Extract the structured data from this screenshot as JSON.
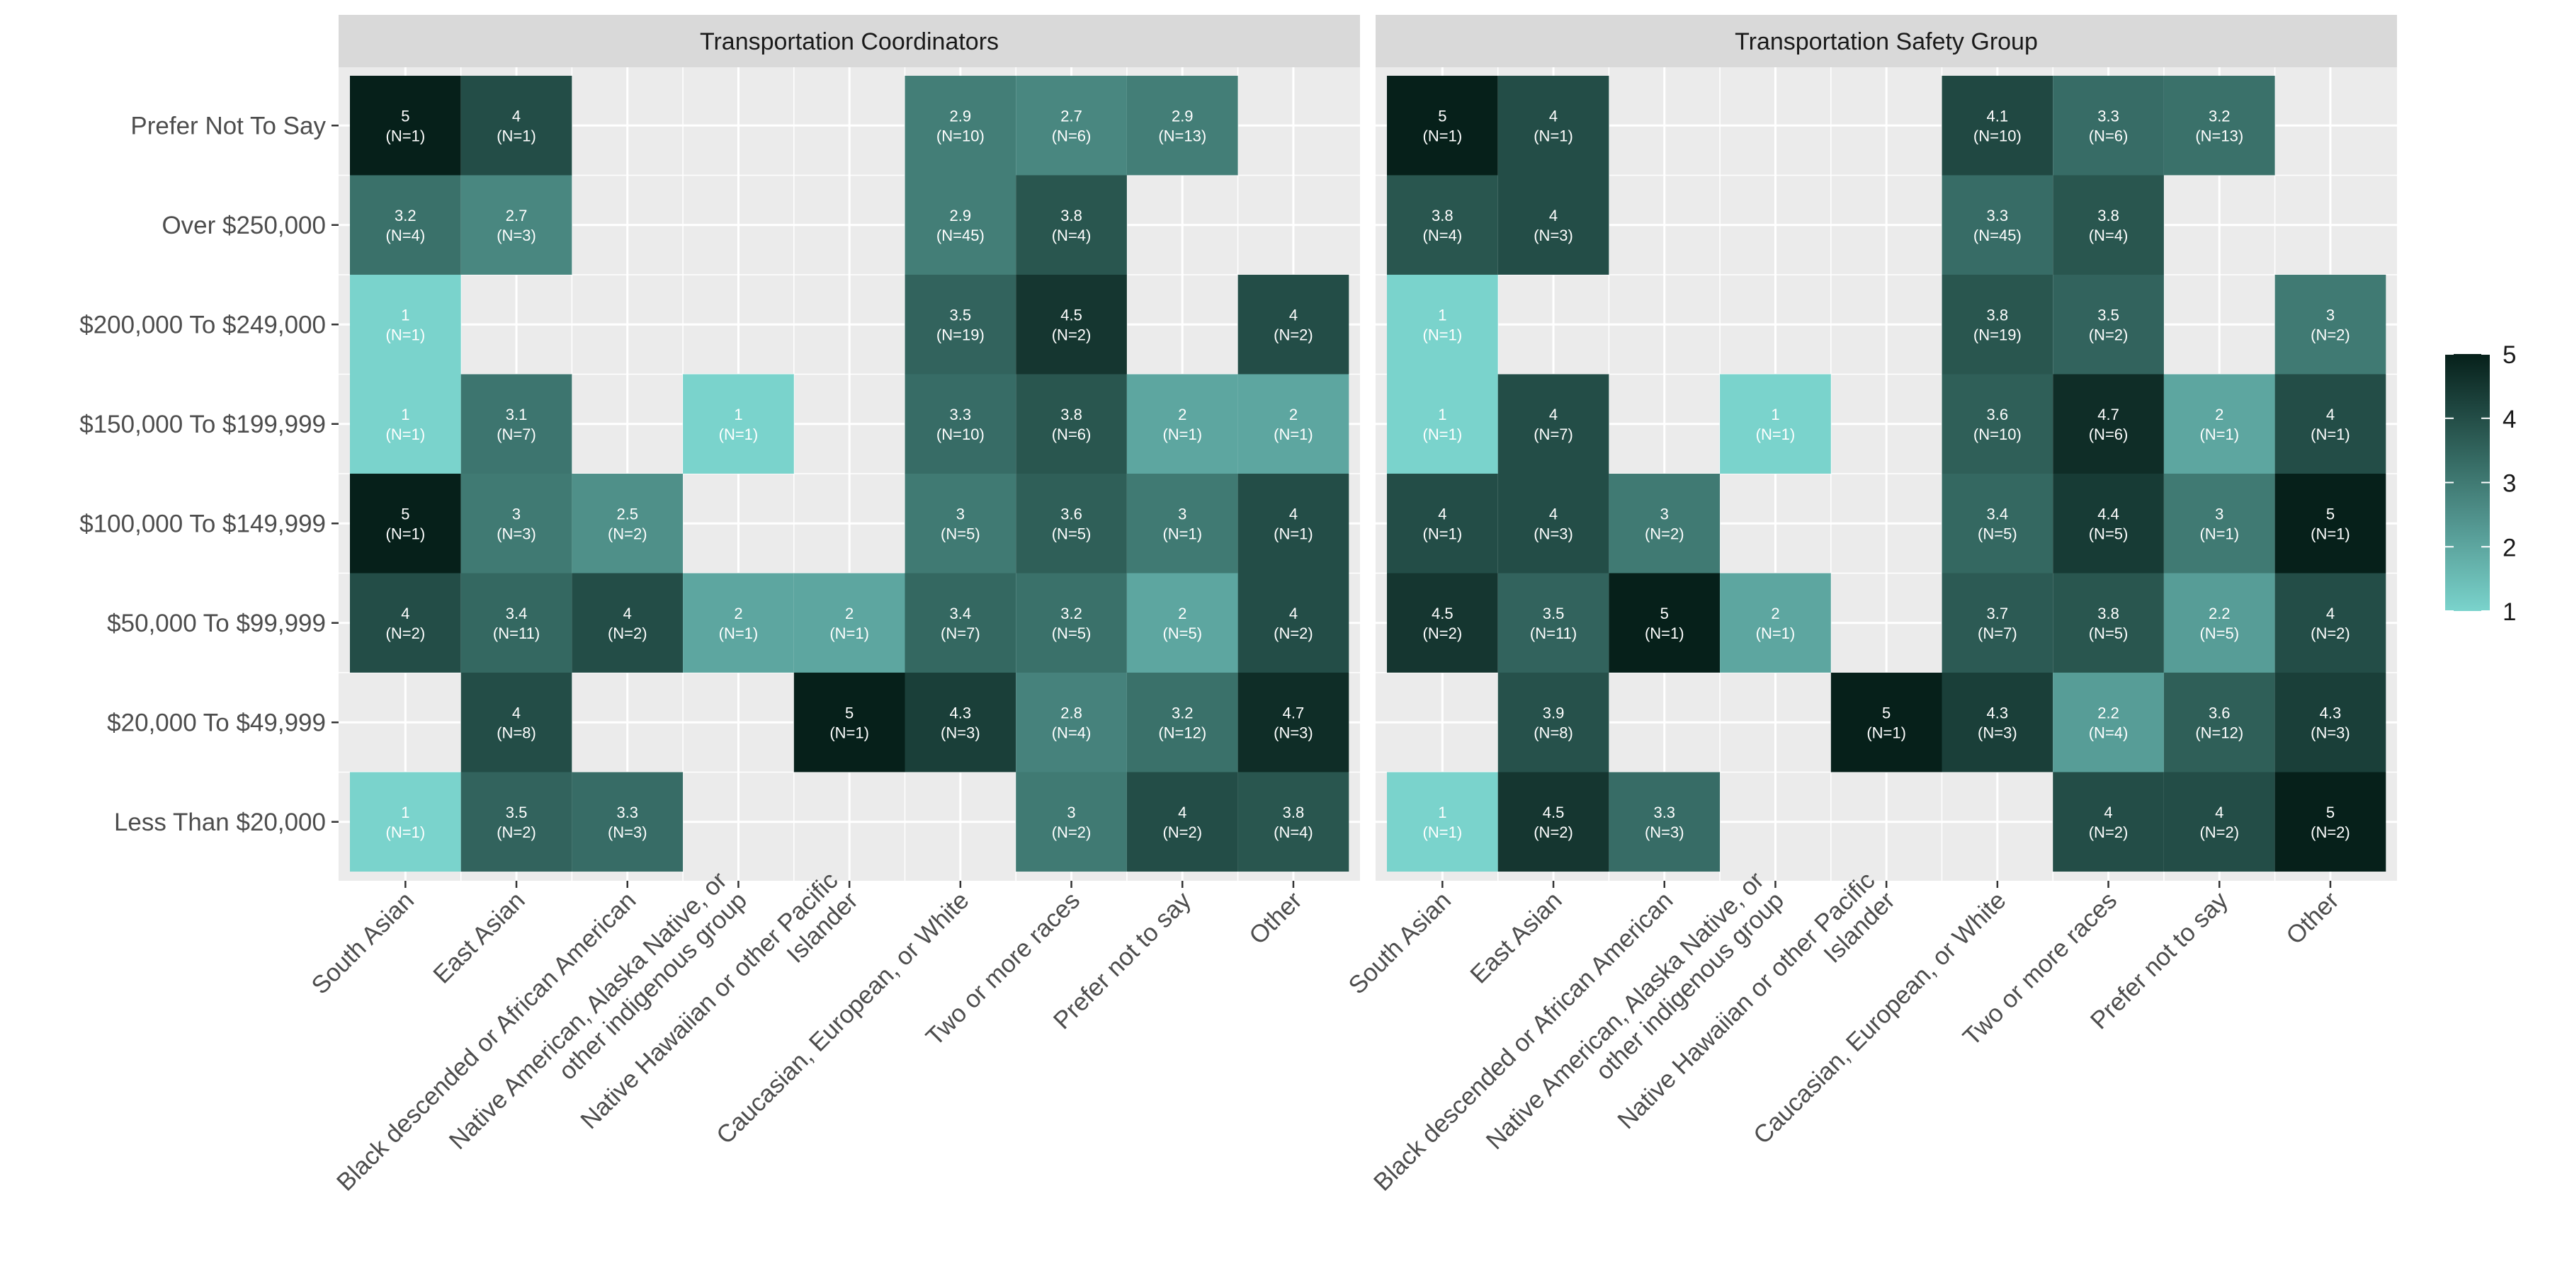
{
  "chart_data": {
    "type": "heatmap",
    "x_categories": [
      "South Asian",
      "East Asian",
      "Black descended or African American",
      "Native American, Alaska Native, or\nother indigenous group",
      "Native Hawaiian or other Pacific\nIslander",
      "Caucasian, European, or White",
      "Two or more races",
      "Prefer not to say",
      "Other"
    ],
    "y_categories": [
      "Prefer Not To Say",
      "Over $250,000",
      "$200,000 To $249,000",
      "$150,000 To $199,999",
      "$100,000 To $149,999",
      "$50,000 To $99,999",
      "$20,000 To $49,999",
      "Less Than $20,000"
    ],
    "color_scale": {
      "low": "#7ad3cc",
      "high": "#06201a",
      "min": 1,
      "max": 5,
      "missing": "#ebebeb"
    },
    "legend": {
      "ticks": [
        1,
        2,
        3,
        4,
        5
      ],
      "placement": "right"
    },
    "panels": [
      {
        "title": "Transportation Coordinators",
        "cells": [
          {
            "x": 0,
            "y": 0,
            "value": "5",
            "n": "(N=1)"
          },
          {
            "x": 1,
            "y": 0,
            "value": "4",
            "n": "(N=1)"
          },
          {
            "x": 5,
            "y": 0,
            "value": "2.9",
            "n": "(N=10)"
          },
          {
            "x": 6,
            "y": 0,
            "value": "2.7",
            "n": "(N=6)"
          },
          {
            "x": 7,
            "y": 0,
            "value": "2.9",
            "n": "(N=13)"
          },
          {
            "x": 0,
            "y": 1,
            "value": "3.2",
            "n": "(N=4)"
          },
          {
            "x": 1,
            "y": 1,
            "value": "2.7",
            "n": "(N=3)"
          },
          {
            "x": 5,
            "y": 1,
            "value": "2.9",
            "n": "(N=45)"
          },
          {
            "x": 6,
            "y": 1,
            "value": "3.8",
            "n": "(N=4)"
          },
          {
            "x": 0,
            "y": 2,
            "value": "1",
            "n": "(N=1)"
          },
          {
            "x": 5,
            "y": 2,
            "value": "3.5",
            "n": "(N=19)"
          },
          {
            "x": 6,
            "y": 2,
            "value": "4.5",
            "n": "(N=2)"
          },
          {
            "x": 8,
            "y": 2,
            "value": "4",
            "n": "(N=2)"
          },
          {
            "x": 0,
            "y": 3,
            "value": "1",
            "n": "(N=1)"
          },
          {
            "x": 1,
            "y": 3,
            "value": "3.1",
            "n": "(N=7)"
          },
          {
            "x": 3,
            "y": 3,
            "value": "1",
            "n": "(N=1)"
          },
          {
            "x": 5,
            "y": 3,
            "value": "3.3",
            "n": "(N=10)"
          },
          {
            "x": 6,
            "y": 3,
            "value": "3.8",
            "n": "(N=6)"
          },
          {
            "x": 7,
            "y": 3,
            "value": "2",
            "n": "(N=1)"
          },
          {
            "x": 8,
            "y": 3,
            "value": "2",
            "n": "(N=1)"
          },
          {
            "x": 0,
            "y": 4,
            "value": "5",
            "n": "(N=1)"
          },
          {
            "x": 1,
            "y": 4,
            "value": "3",
            "n": "(N=3)"
          },
          {
            "x": 2,
            "y": 4,
            "value": "2.5",
            "n": "(N=2)"
          },
          {
            "x": 5,
            "y": 4,
            "value": "3",
            "n": "(N=5)"
          },
          {
            "x": 6,
            "y": 4,
            "value": "3.6",
            "n": "(N=5)"
          },
          {
            "x": 7,
            "y": 4,
            "value": "3",
            "n": "(N=1)"
          },
          {
            "x": 8,
            "y": 4,
            "value": "4",
            "n": "(N=1)"
          },
          {
            "x": 0,
            "y": 5,
            "value": "4",
            "n": "(N=2)"
          },
          {
            "x": 1,
            "y": 5,
            "value": "3.4",
            "n": "(N=11)"
          },
          {
            "x": 2,
            "y": 5,
            "value": "4",
            "n": "(N=2)"
          },
          {
            "x": 3,
            "y": 5,
            "value": "2",
            "n": "(N=1)"
          },
          {
            "x": 4,
            "y": 5,
            "value": "2",
            "n": "(N=1)"
          },
          {
            "x": 5,
            "y": 5,
            "value": "3.4",
            "n": "(N=7)"
          },
          {
            "x": 6,
            "y": 5,
            "value": "3.2",
            "n": "(N=5)"
          },
          {
            "x": 7,
            "y": 5,
            "value": "2",
            "n": "(N=5)"
          },
          {
            "x": 8,
            "y": 5,
            "value": "4",
            "n": "(N=2)"
          },
          {
            "x": 1,
            "y": 6,
            "value": "4",
            "n": "(N=8)"
          },
          {
            "x": 4,
            "y": 6,
            "value": "5",
            "n": "(N=1)"
          },
          {
            "x": 5,
            "y": 6,
            "value": "4.3",
            "n": "(N=3)"
          },
          {
            "x": 6,
            "y": 6,
            "value": "2.8",
            "n": "(N=4)"
          },
          {
            "x": 7,
            "y": 6,
            "value": "3.2",
            "n": "(N=12)"
          },
          {
            "x": 8,
            "y": 6,
            "value": "4.7",
            "n": "(N=3)"
          },
          {
            "x": 0,
            "y": 7,
            "value": "1",
            "n": "(N=1)"
          },
          {
            "x": 1,
            "y": 7,
            "value": "3.5",
            "n": "(N=2)"
          },
          {
            "x": 2,
            "y": 7,
            "value": "3.3",
            "n": "(N=3)"
          },
          {
            "x": 6,
            "y": 7,
            "value": "3",
            "n": "(N=2)"
          },
          {
            "x": 7,
            "y": 7,
            "value": "4",
            "n": "(N=2)"
          },
          {
            "x": 8,
            "y": 7,
            "value": "3.8",
            "n": "(N=4)"
          }
        ]
      },
      {
        "title": "Transportation Safety Group",
        "cells": [
          {
            "x": 0,
            "y": 0,
            "value": "5",
            "n": "(N=1)"
          },
          {
            "x": 1,
            "y": 0,
            "value": "4",
            "n": "(N=1)"
          },
          {
            "x": 5,
            "y": 0,
            "value": "4.1",
            "n": "(N=10)"
          },
          {
            "x": 6,
            "y": 0,
            "value": "3.3",
            "n": "(N=6)"
          },
          {
            "x": 7,
            "y": 0,
            "value": "3.2",
            "n": "(N=13)"
          },
          {
            "x": 0,
            "y": 1,
            "value": "3.8",
            "n": "(N=4)"
          },
          {
            "x": 1,
            "y": 1,
            "value": "4",
            "n": "(N=3)"
          },
          {
            "x": 5,
            "y": 1,
            "value": "3.3",
            "n": "(N=45)"
          },
          {
            "x": 6,
            "y": 1,
            "value": "3.8",
            "n": "(N=4)"
          },
          {
            "x": 0,
            "y": 2,
            "value": "1",
            "n": "(N=1)"
          },
          {
            "x": 5,
            "y": 2,
            "value": "3.8",
            "n": "(N=19)"
          },
          {
            "x": 6,
            "y": 2,
            "value": "3.5",
            "n": "(N=2)"
          },
          {
            "x": 8,
            "y": 2,
            "value": "3",
            "n": "(N=2)"
          },
          {
            "x": 0,
            "y": 3,
            "value": "1",
            "n": "(N=1)"
          },
          {
            "x": 1,
            "y": 3,
            "value": "4",
            "n": "(N=7)"
          },
          {
            "x": 3,
            "y": 3,
            "value": "1",
            "n": "(N=1)"
          },
          {
            "x": 5,
            "y": 3,
            "value": "3.6",
            "n": "(N=10)"
          },
          {
            "x": 6,
            "y": 3,
            "value": "4.7",
            "n": "(N=6)"
          },
          {
            "x": 7,
            "y": 3,
            "value": "2",
            "n": "(N=1)"
          },
          {
            "x": 8,
            "y": 3,
            "value": "4",
            "n": "(N=1)"
          },
          {
            "x": 0,
            "y": 4,
            "value": "4",
            "n": "(N=1)"
          },
          {
            "x": 1,
            "y": 4,
            "value": "4",
            "n": "(N=3)"
          },
          {
            "x": 2,
            "y": 4,
            "value": "3",
            "n": "(N=2)"
          },
          {
            "x": 5,
            "y": 4,
            "value": "3.4",
            "n": "(N=5)"
          },
          {
            "x": 6,
            "y": 4,
            "value": "4.4",
            "n": "(N=5)"
          },
          {
            "x": 7,
            "y": 4,
            "value": "3",
            "n": "(N=1)"
          },
          {
            "x": 8,
            "y": 4,
            "value": "5",
            "n": "(N=1)"
          },
          {
            "x": 0,
            "y": 5,
            "value": "4.5",
            "n": "(N=2)"
          },
          {
            "x": 1,
            "y": 5,
            "value": "3.5",
            "n": "(N=11)"
          },
          {
            "x": 2,
            "y": 5,
            "value": "5",
            "n": "(N=1)"
          },
          {
            "x": 3,
            "y": 5,
            "value": "2",
            "n": "(N=1)"
          },
          {
            "x": 5,
            "y": 5,
            "value": "3.7",
            "n": "(N=7)"
          },
          {
            "x": 6,
            "y": 5,
            "value": "3.8",
            "n": "(N=5)"
          },
          {
            "x": 7,
            "y": 5,
            "value": "2.2",
            "n": "(N=5)"
          },
          {
            "x": 8,
            "y": 5,
            "value": "4",
            "n": "(N=2)"
          },
          {
            "x": 1,
            "y": 6,
            "value": "3.9",
            "n": "(N=8)"
          },
          {
            "x": 4,
            "y": 6,
            "value": "5",
            "n": "(N=1)"
          },
          {
            "x": 5,
            "y": 6,
            "value": "4.3",
            "n": "(N=3)"
          },
          {
            "x": 6,
            "y": 6,
            "value": "2.2",
            "n": "(N=4)"
          },
          {
            "x": 7,
            "y": 6,
            "value": "3.6",
            "n": "(N=12)"
          },
          {
            "x": 8,
            "y": 6,
            "value": "4.3",
            "n": "(N=3)"
          },
          {
            "x": 0,
            "y": 7,
            "value": "1",
            "n": "(N=1)"
          },
          {
            "x": 1,
            "y": 7,
            "value": "4.5",
            "n": "(N=2)"
          },
          {
            "x": 2,
            "y": 7,
            "value": "3.3",
            "n": "(N=3)"
          },
          {
            "x": 6,
            "y": 7,
            "value": "4",
            "n": "(N=2)"
          },
          {
            "x": 7,
            "y": 7,
            "value": "4",
            "n": "(N=2)"
          },
          {
            "x": 8,
            "y": 7,
            "value": "5",
            "n": "(N=2)"
          }
        ]
      }
    ]
  }
}
